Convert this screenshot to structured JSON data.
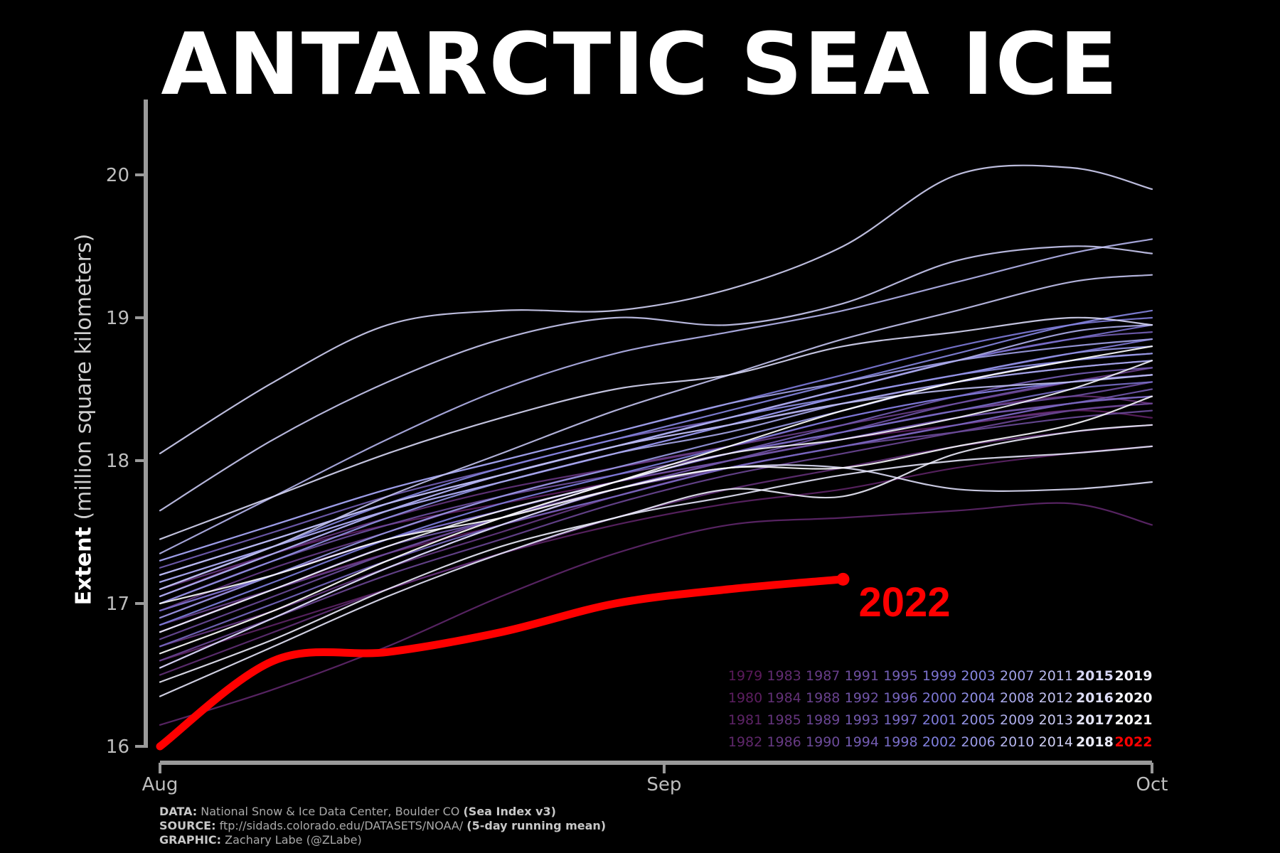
{
  "title": "ANTARCTIC SEA ICE",
  "ylabel_bold": "Extent",
  "ylabel_rest": "(million square kilometers)",
  "highlight_label": "2022",
  "credits": {
    "data_key": "DATA:",
    "data_text": "National Snow & Ice Data Center, Boulder CO",
    "data_bold": "(Sea Index v3)",
    "source_key": "SOURCE:",
    "source_text": "ftp://sidads.colorado.edu/DATASETS/NOAA/",
    "source_bold": "(5-day running mean)",
    "graphic_key": "GRAPHIC:",
    "graphic_text": "Zachary Labe (@ZLabe)"
  },
  "colors": {
    "background": "#000000",
    "axis": "#9a9a9a",
    "highlight": "#ff0000",
    "palette_start": "#5a1a5a",
    "palette_mid": "#8080e0",
    "palette_end": "#ffffff"
  },
  "chart_data": {
    "type": "line",
    "title": "ANTARCTIC SEA ICE",
    "xlabel": "",
    "ylabel": "Extent (million square kilometers)",
    "x_ticks": [
      "Aug",
      "Sep",
      "Oct"
    ],
    "x_range": [
      "Aug 1",
      "Oct 1"
    ],
    "y_ticks": [
      16,
      17,
      18,
      19,
      20
    ],
    "ylim": [
      16,
      20.5
    ],
    "grid": false,
    "legend_position": "bottom-right",
    "legend_rows": [
      [
        "1979",
        "1983",
        "1987",
        "1991",
        "1995",
        "1999",
        "2003",
        "2007",
        "2011",
        "2015",
        "2019"
      ],
      [
        "1980",
        "1984",
        "1988",
        "1992",
        "1996",
        "2000",
        "2004",
        "2008",
        "2012",
        "2016",
        "2020"
      ],
      [
        "1981",
        "1985",
        "1989",
        "1993",
        "1997",
        "2001",
        "2005",
        "2009",
        "2013",
        "2017",
        "2021"
      ],
      [
        "1982",
        "1986",
        "1990",
        "1994",
        "1998",
        "2002",
        "2006",
        "2010",
        "2014",
        "2018",
        "2022"
      ]
    ],
    "x_days": [
      0,
      7,
      14,
      21,
      28,
      35,
      42,
      49,
      56,
      61
    ],
    "series": [
      {
        "name": "1979",
        "values": [
          16.8,
          17.1,
          17.35,
          17.55,
          17.75,
          17.95,
          18.1,
          18.25,
          18.4,
          18.45
        ]
      },
      {
        "name": "1980",
        "values": [
          17.05,
          17.35,
          17.55,
          17.7,
          17.85,
          18.0,
          18.15,
          18.25,
          18.35,
          18.3
        ]
      },
      {
        "name": "1981",
        "values": [
          16.6,
          16.85,
          17.1,
          17.35,
          17.55,
          17.7,
          17.8,
          17.95,
          18.05,
          18.1
        ]
      },
      {
        "name": "1982",
        "values": [
          16.15,
          16.4,
          16.7,
          17.05,
          17.35,
          17.55,
          17.6,
          17.65,
          17.7,
          17.55
        ]
      },
      {
        "name": "1983",
        "values": [
          16.9,
          17.2,
          17.45,
          17.65,
          17.85,
          18.05,
          18.2,
          18.35,
          18.45,
          18.4
        ]
      },
      {
        "name": "1984",
        "values": [
          16.5,
          16.8,
          17.1,
          17.35,
          17.6,
          17.8,
          17.95,
          18.1,
          18.2,
          18.25
        ]
      },
      {
        "name": "1985",
        "values": [
          17.1,
          17.35,
          17.6,
          17.8,
          17.95,
          18.1,
          18.3,
          18.45,
          18.55,
          18.6
        ]
      },
      {
        "name": "1986",
        "values": [
          16.7,
          16.95,
          17.25,
          17.5,
          17.75,
          17.95,
          18.1,
          18.25,
          18.35,
          18.4
        ]
      },
      {
        "name": "1987",
        "values": [
          16.95,
          17.25,
          17.5,
          17.75,
          17.95,
          18.1,
          18.25,
          18.4,
          18.55,
          18.65
        ]
      },
      {
        "name": "1988",
        "values": [
          16.85,
          17.1,
          17.35,
          17.6,
          17.8,
          18.0,
          18.15,
          18.3,
          18.4,
          18.45
        ]
      },
      {
        "name": "1989",
        "values": [
          16.6,
          16.9,
          17.2,
          17.45,
          17.7,
          17.9,
          18.05,
          18.2,
          18.35,
          18.4
        ]
      },
      {
        "name": "1990",
        "values": [
          16.75,
          17.05,
          17.35,
          17.6,
          17.8,
          17.95,
          18.1,
          18.2,
          18.3,
          18.35
        ]
      },
      {
        "name": "1991",
        "values": [
          17.0,
          17.3,
          17.55,
          17.75,
          17.9,
          18.05,
          18.2,
          18.35,
          18.45,
          18.55
        ]
      },
      {
        "name": "1992",
        "values": [
          16.55,
          16.9,
          17.25,
          17.55,
          17.8,
          18.0,
          18.2,
          18.4,
          18.55,
          18.6
        ]
      },
      {
        "name": "1993",
        "values": [
          16.95,
          17.2,
          17.45,
          17.65,
          17.85,
          18.0,
          18.15,
          18.3,
          18.4,
          18.5
        ]
      },
      {
        "name": "1994",
        "values": [
          16.8,
          17.1,
          17.4,
          17.6,
          17.85,
          18.05,
          18.25,
          18.45,
          18.6,
          18.65
        ]
      },
      {
        "name": "1995",
        "values": [
          17.25,
          17.5,
          17.75,
          17.95,
          18.15,
          18.3,
          18.5,
          18.7,
          18.85,
          18.9
        ]
      },
      {
        "name": "1996",
        "values": [
          17.2,
          17.45,
          17.7,
          17.9,
          18.1,
          18.25,
          18.4,
          18.55,
          18.65,
          18.7
        ]
      },
      {
        "name": "1997",
        "values": [
          16.7,
          17.0,
          17.3,
          17.55,
          17.75,
          17.95,
          18.1,
          18.25,
          18.4,
          18.45
        ]
      },
      {
        "name": "1998",
        "values": [
          16.95,
          17.2,
          17.45,
          17.65,
          17.85,
          18.05,
          18.2,
          18.35,
          18.5,
          18.55
        ]
      },
      {
        "name": "1999",
        "values": [
          17.05,
          17.35,
          17.65,
          17.9,
          18.1,
          18.3,
          18.5,
          18.7,
          18.85,
          18.95
        ]
      },
      {
        "name": "2000",
        "values": [
          17.15,
          17.4,
          17.65,
          17.85,
          18.05,
          18.25,
          18.45,
          18.6,
          18.75,
          18.85
        ]
      },
      {
        "name": "2001",
        "values": [
          17.3,
          17.55,
          17.8,
          18.0,
          18.2,
          18.4,
          18.6,
          18.8,
          18.95,
          19.0
        ]
      },
      {
        "name": "2002",
        "values": [
          16.85,
          17.15,
          17.45,
          17.7,
          17.9,
          18.1,
          18.3,
          18.45,
          18.55,
          18.6
        ]
      },
      {
        "name": "2003",
        "values": [
          17.1,
          17.4,
          17.7,
          17.95,
          18.15,
          18.35,
          18.55,
          18.75,
          18.95,
          19.05
        ]
      },
      {
        "name": "2004",
        "values": [
          17.2,
          17.45,
          17.7,
          17.9,
          18.1,
          18.3,
          18.45,
          18.6,
          18.7,
          18.75
        ]
      },
      {
        "name": "2005",
        "values": [
          17.0,
          17.3,
          17.6,
          17.85,
          18.05,
          18.25,
          18.45,
          18.6,
          18.75,
          18.8
        ]
      },
      {
        "name": "2006",
        "values": [
          16.9,
          17.2,
          17.5,
          17.75,
          17.95,
          18.15,
          18.35,
          18.55,
          18.7,
          18.75
        ]
      },
      {
        "name": "2007",
        "values": [
          17.3,
          17.55,
          17.8,
          18.0,
          18.2,
          18.4,
          18.55,
          18.7,
          18.8,
          18.85
        ]
      },
      {
        "name": "2008",
        "values": [
          17.15,
          17.4,
          17.65,
          17.85,
          18.05,
          18.2,
          18.4,
          18.55,
          18.65,
          18.7
        ]
      },
      {
        "name": "2009",
        "values": [
          17.05,
          17.35,
          17.65,
          17.9,
          18.1,
          18.3,
          18.5,
          18.7,
          18.9,
          18.95
        ]
      },
      {
        "name": "2010",
        "values": [
          17.35,
          17.75,
          18.15,
          18.5,
          18.75,
          18.9,
          19.05,
          19.25,
          19.45,
          19.55
        ]
      },
      {
        "name": "2011",
        "values": [
          17.2,
          17.45,
          17.7,
          17.9,
          18.1,
          18.25,
          18.4,
          18.5,
          18.55,
          18.6
        ]
      },
      {
        "name": "2012",
        "values": [
          17.1,
          17.4,
          17.75,
          18.05,
          18.35,
          18.6,
          18.85,
          19.05,
          19.25,
          19.3
        ]
      },
      {
        "name": "2013",
        "values": [
          17.65,
          18.15,
          18.55,
          18.85,
          19.0,
          18.95,
          19.1,
          19.4,
          19.5,
          19.45
        ]
      },
      {
        "name": "2014",
        "values": [
          18.05,
          18.55,
          18.95,
          19.05,
          19.05,
          19.2,
          19.5,
          20.0,
          20.05,
          19.9
        ]
      },
      {
        "name": "2015",
        "values": [
          17.45,
          17.75,
          18.05,
          18.3,
          18.5,
          18.6,
          18.8,
          18.9,
          19.0,
          18.95
        ]
      },
      {
        "name": "2016",
        "values": [
          16.55,
          16.9,
          17.25,
          17.55,
          17.8,
          17.95,
          17.95,
          17.8,
          17.8,
          17.85
        ]
      },
      {
        "name": "2017",
        "values": [
          16.35,
          16.7,
          17.05,
          17.35,
          17.6,
          17.75,
          17.9,
          18.0,
          18.05,
          18.1
        ]
      },
      {
        "name": "2018",
        "values": [
          16.45,
          16.75,
          17.1,
          17.4,
          17.6,
          17.8,
          17.75,
          18.05,
          18.2,
          18.25
        ]
      },
      {
        "name": "2019",
        "values": [
          16.8,
          17.1,
          17.4,
          17.65,
          17.85,
          18.05,
          18.15,
          18.3,
          18.5,
          18.7
        ]
      },
      {
        "name": "2020",
        "values": [
          17.0,
          17.2,
          17.45,
          17.6,
          17.8,
          17.95,
          17.95,
          18.1,
          18.25,
          18.45
        ]
      },
      {
        "name": "2021",
        "values": [
          16.65,
          16.95,
          17.3,
          17.6,
          17.85,
          18.1,
          18.35,
          18.55,
          18.7,
          18.8
        ]
      },
      {
        "name": "2022",
        "values": [
          16.0,
          16.6,
          16.66,
          16.8,
          17.0,
          17.1,
          17.17
        ]
      }
    ]
  }
}
